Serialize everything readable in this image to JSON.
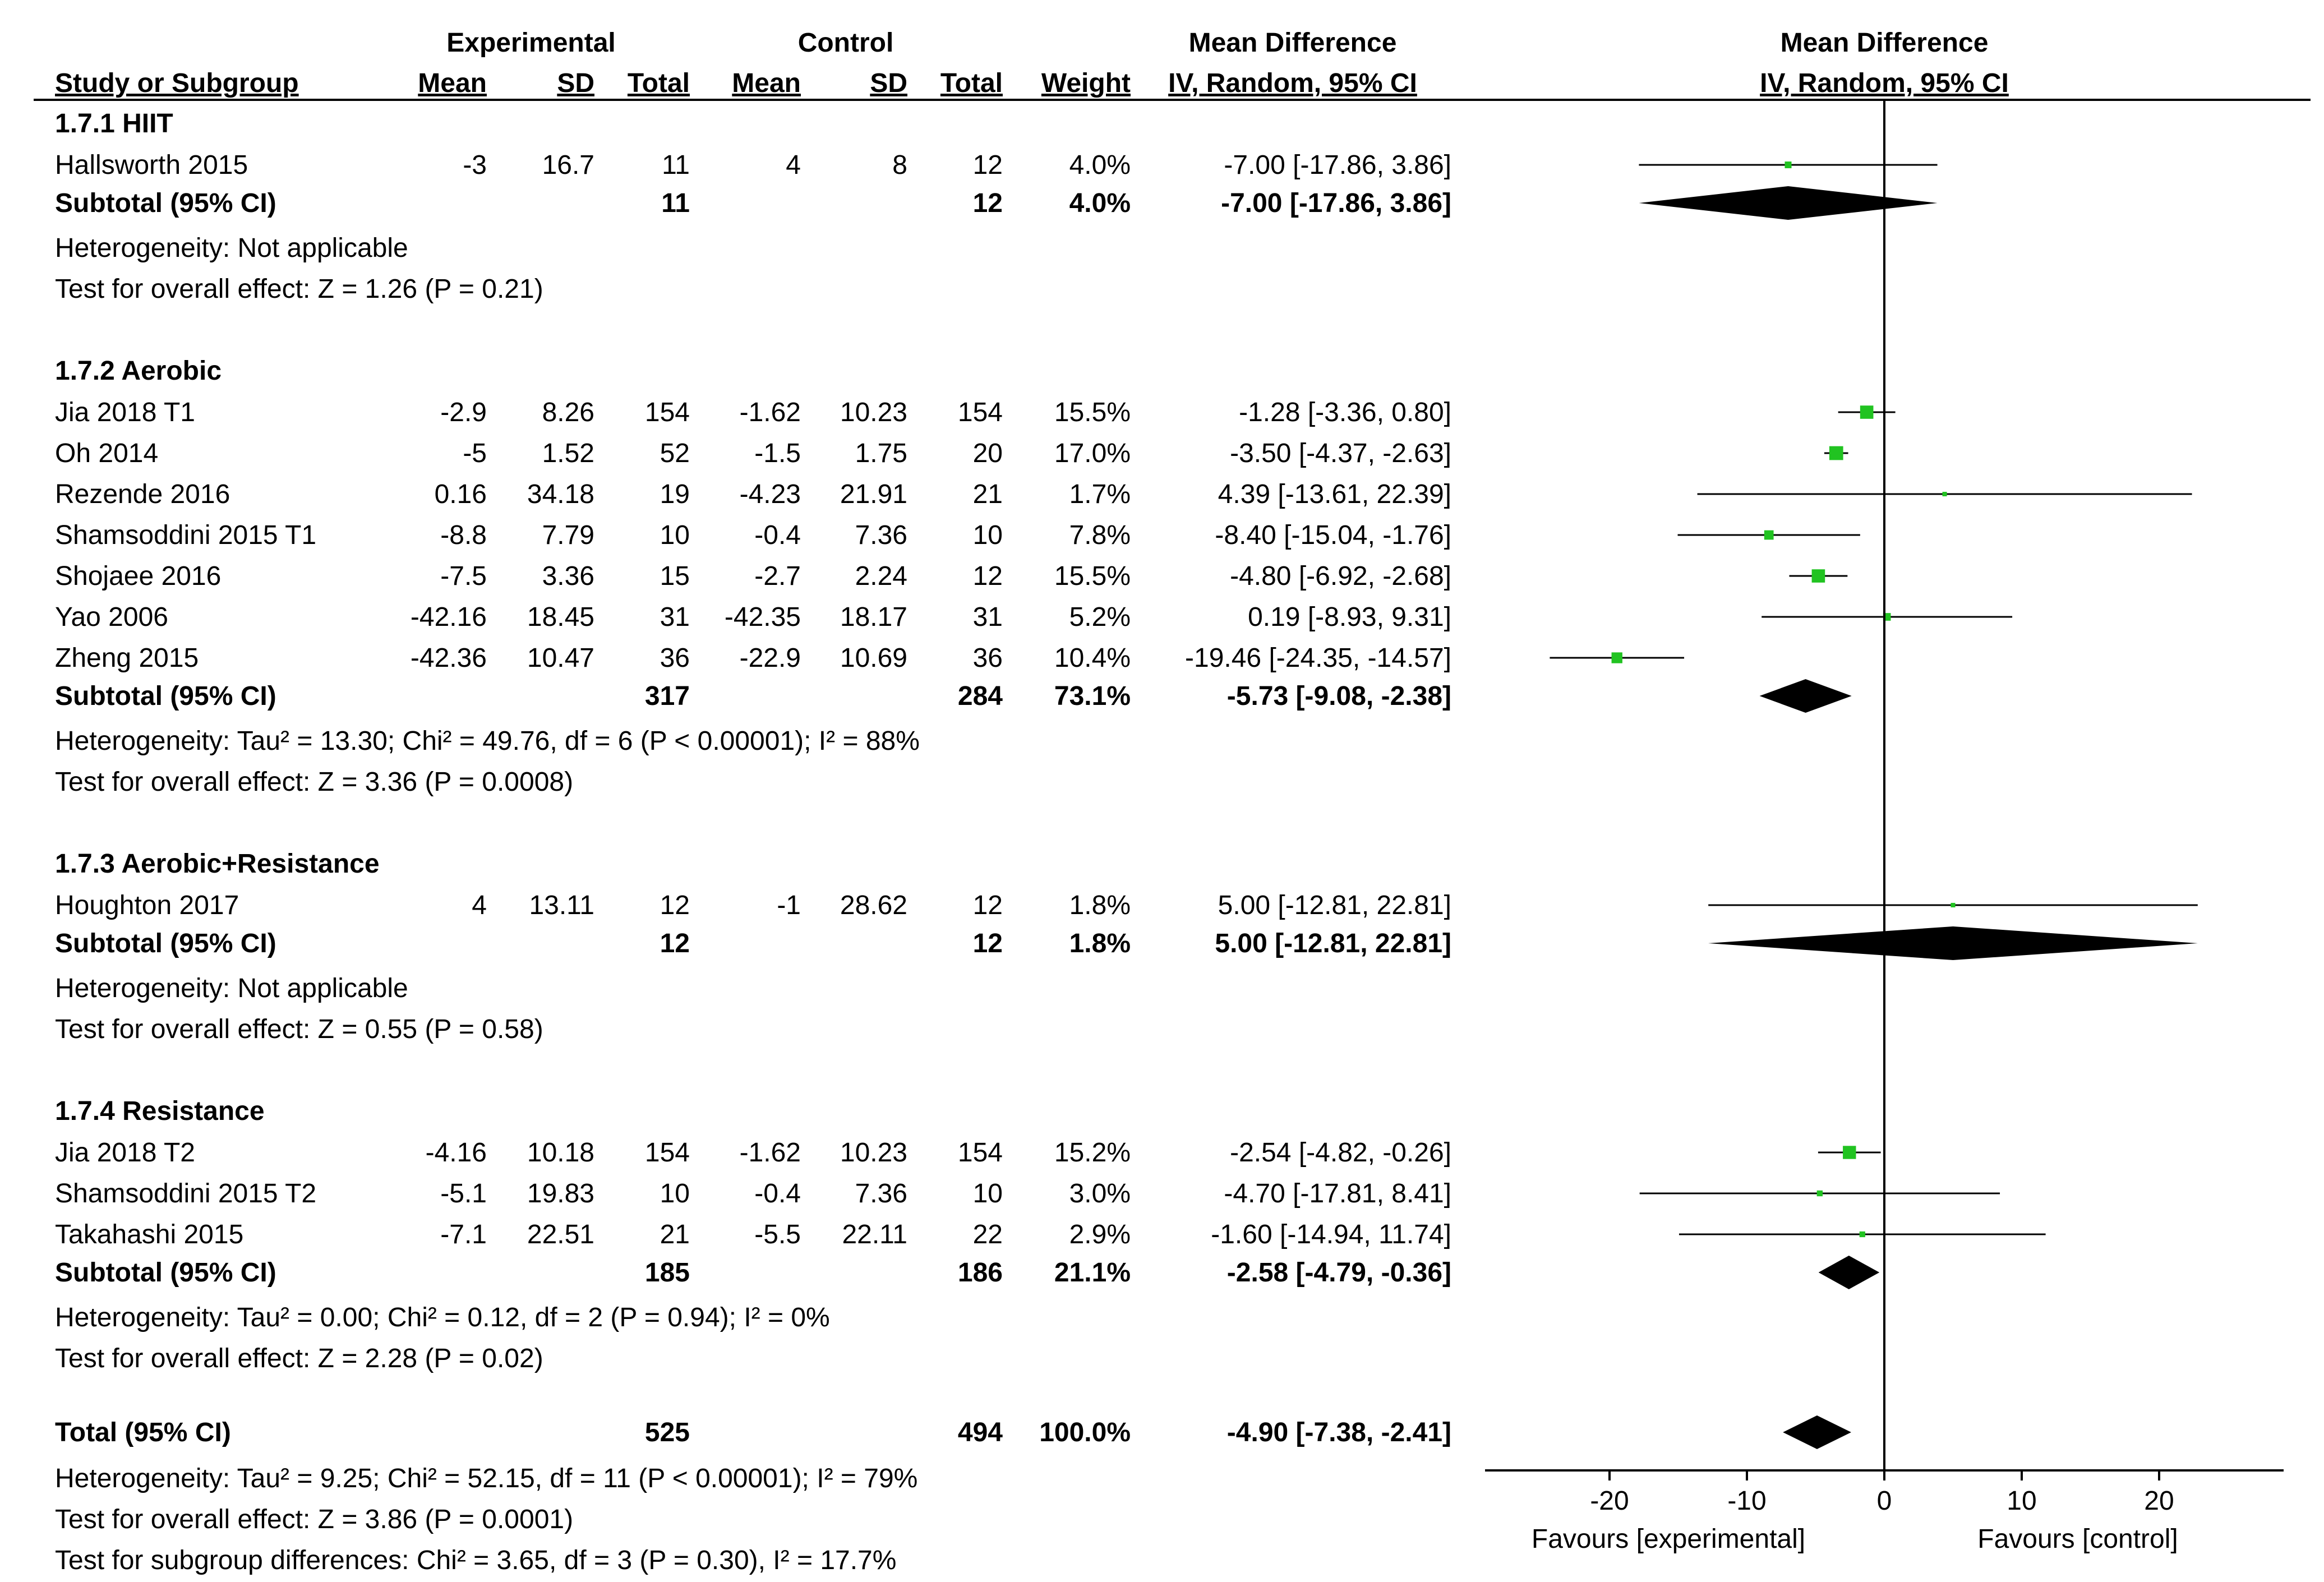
{
  "header": {
    "group1": "Experimental",
    "group2": "Control",
    "effect": "Mean Difference",
    "plot_title": "Mean Difference",
    "cols": {
      "study": "Study or Subgroup",
      "mean_e": "Mean",
      "sd_e": "SD",
      "total_e": "Total",
      "mean_c": "Mean",
      "sd_c": "SD",
      "total_c": "Total",
      "weight": "Weight",
      "ci": "IV, Random, 95% CI",
      "plot_ci": "IV, Random, 95% CI"
    }
  },
  "subgroups": [
    {
      "title": "1.7.1 HIIT",
      "studies": [
        {
          "name": "Hallsworth 2015",
          "mean_e": "-3",
          "sd_e": "16.7",
          "total_e": "11",
          "mean_c": "4",
          "sd_c": "8",
          "total_c": "12",
          "weight": "4.0%",
          "ci_text": "-7.00 [-17.86, 3.86]",
          "md": -7.0,
          "lo": -17.86,
          "hi": 3.86
        }
      ],
      "subtotal": {
        "label": "Subtotal (95% CI)",
        "total_e": "11",
        "total_c": "12",
        "weight": "4.0%",
        "ci_text": "-7.00 [-17.86, 3.86]",
        "md": -7.0,
        "lo": -17.86,
        "hi": 3.86
      },
      "heterogeneity": "Heterogeneity: Not applicable",
      "overall": "Test for overall effect: Z = 1.26 (P = 0.21)"
    },
    {
      "title": "1.7.2 Aerobic",
      "studies": [
        {
          "name": "Jia 2018 T1",
          "mean_e": "-2.9",
          "sd_e": "8.26",
          "total_e": "154",
          "mean_c": "-1.62",
          "sd_c": "10.23",
          "total_c": "154",
          "weight": "15.5%",
          "ci_text": "-1.28 [-3.36, 0.80]",
          "md": -1.28,
          "lo": -3.36,
          "hi": 0.8
        },
        {
          "name": "Oh 2014",
          "mean_e": "-5",
          "sd_e": "1.52",
          "total_e": "52",
          "mean_c": "-1.5",
          "sd_c": "1.75",
          "total_c": "20",
          "weight": "17.0%",
          "ci_text": "-3.50 [-4.37, -2.63]",
          "md": -3.5,
          "lo": -4.37,
          "hi": -2.63
        },
        {
          "name": "Rezende 2016",
          "mean_e": "0.16",
          "sd_e": "34.18",
          "total_e": "19",
          "mean_c": "-4.23",
          "sd_c": "21.91",
          "total_c": "21",
          "weight": "1.7%",
          "ci_text": "4.39 [-13.61, 22.39]",
          "md": 4.39,
          "lo": -13.61,
          "hi": 22.39
        },
        {
          "name": "Shamsoddini 2015 T1",
          "mean_e": "-8.8",
          "sd_e": "7.79",
          "total_e": "10",
          "mean_c": "-0.4",
          "sd_c": "7.36",
          "total_c": "10",
          "weight": "7.8%",
          "ci_text": "-8.40 [-15.04, -1.76]",
          "md": -8.4,
          "lo": -15.04,
          "hi": -1.76
        },
        {
          "name": "Shojaee 2016",
          "mean_e": "-7.5",
          "sd_e": "3.36",
          "total_e": "15",
          "mean_c": "-2.7",
          "sd_c": "2.24",
          "total_c": "12",
          "weight": "15.5%",
          "ci_text": "-4.80 [-6.92, -2.68]",
          "md": -4.8,
          "lo": -6.92,
          "hi": -2.68
        },
        {
          "name": "Yao 2006",
          "mean_e": "-42.16",
          "sd_e": "18.45",
          "total_e": "31",
          "mean_c": "-42.35",
          "sd_c": "18.17",
          "total_c": "31",
          "weight": "5.2%",
          "ci_text": "0.19 [-8.93, 9.31]",
          "md": 0.19,
          "lo": -8.93,
          "hi": 9.31
        },
        {
          "name": "Zheng  2015",
          "mean_e": "-42.36",
          "sd_e": "10.47",
          "total_e": "36",
          "mean_c": "-22.9",
          "sd_c": "10.69",
          "total_c": "36",
          "weight": "10.4%",
          "ci_text": "-19.46 [-24.35, -14.57]",
          "md": -19.46,
          "lo": -24.35,
          "hi": -14.57
        }
      ],
      "subtotal": {
        "label": "Subtotal (95% CI)",
        "total_e": "317",
        "total_c": "284",
        "weight": "73.1%",
        "ci_text": "-5.73 [-9.08, -2.38]",
        "md": -5.73,
        "lo": -9.08,
        "hi": -2.38
      },
      "heterogeneity": "Heterogeneity: Tau² = 13.30; Chi² = 49.76, df = 6 (P < 0.00001); I² = 88%",
      "overall": "Test for overall effect: Z = 3.36 (P = 0.0008)"
    },
    {
      "title": "1.7.3 Aerobic+Resistance",
      "studies": [
        {
          "name": "Houghton 2017",
          "mean_e": "4",
          "sd_e": "13.11",
          "total_e": "12",
          "mean_c": "-1",
          "sd_c": "28.62",
          "total_c": "12",
          "weight": "1.8%",
          "ci_text": "5.00 [-12.81, 22.81]",
          "md": 5.0,
          "lo": -12.81,
          "hi": 22.81
        }
      ],
      "subtotal": {
        "label": "Subtotal (95% CI)",
        "total_e": "12",
        "total_c": "12",
        "weight": "1.8%",
        "ci_text": "5.00 [-12.81, 22.81]",
        "md": 5.0,
        "lo": -12.81,
        "hi": 22.81
      },
      "heterogeneity": "Heterogeneity: Not applicable",
      "overall": "Test for overall effect: Z = 0.55 (P = 0.58)"
    },
    {
      "title": "1.7.4 Resistance",
      "studies": [
        {
          "name": "Jia 2018 T2",
          "mean_e": "-4.16",
          "sd_e": "10.18",
          "total_e": "154",
          "mean_c": "-1.62",
          "sd_c": "10.23",
          "total_c": "154",
          "weight": "15.2%",
          "ci_text": "-2.54 [-4.82, -0.26]",
          "md": -2.54,
          "lo": -4.82,
          "hi": -0.26
        },
        {
          "name": "Shamsoddini 2015 T2",
          "mean_e": "-5.1",
          "sd_e": "19.83",
          "total_e": "10",
          "mean_c": "-0.4",
          "sd_c": "7.36",
          "total_c": "10",
          "weight": "3.0%",
          "ci_text": "-4.70 [-17.81, 8.41]",
          "md": -4.7,
          "lo": -17.81,
          "hi": 8.41
        },
        {
          "name": "Takahashi 2015",
          "mean_e": "-7.1",
          "sd_e": "22.51",
          "total_e": "21",
          "mean_c": "-5.5",
          "sd_c": "22.11",
          "total_c": "22",
          "weight": "2.9%",
          "ci_text": "-1.60 [-14.94, 11.74]",
          "md": -1.6,
          "lo": -14.94,
          "hi": 11.74
        }
      ],
      "subtotal": {
        "label": "Subtotal (95% CI)",
        "total_e": "185",
        "total_c": "186",
        "weight": "21.1%",
        "ci_text": "-2.58 [-4.79, -0.36]",
        "md": -2.58,
        "lo": -4.79,
        "hi": -0.36
      },
      "heterogeneity": "Heterogeneity: Tau² = 0.00; Chi² = 0.12, df = 2 (P = 0.94); I² = 0%",
      "overall": "Test for overall effect: Z = 2.28 (P = 0.02)"
    }
  ],
  "total": {
    "label": "Total (95% CI)",
    "total_e": "525",
    "total_c": "494",
    "weight": "100.0%",
    "ci_text": "-4.90 [-7.38, -2.41]",
    "md": -4.9,
    "lo": -7.38,
    "hi": -2.41
  },
  "footer": {
    "heterogeneity": "Heterogeneity: Tau² = 9.25; Chi² = 52.15, df = 11 (P < 0.00001); I² = 79%",
    "overall": "Test for overall effect: Z = 3.86 (P = 0.0001)",
    "subgroup_diff": "Test for subgroup differences: Chi² = 3.65, df = 3 (P = 0.30), I² = 17.7%"
  },
  "chart_data": {
    "type": "scatter",
    "title": "Mean Difference",
    "subtitle": "IV, Random, 95% CI",
    "xlim": [
      -29,
      29
    ],
    "x_ticks": [
      -20,
      -10,
      0,
      10,
      20
    ],
    "x_tick_labels": [
      "-20",
      "-10",
      "0",
      "10",
      "20"
    ],
    "favours_left": "Favours [experimental]",
    "favours_right": "Favours [control]",
    "colors": {
      "marker": "#21c321",
      "line": "#000000",
      "diamond": "#000000"
    }
  }
}
